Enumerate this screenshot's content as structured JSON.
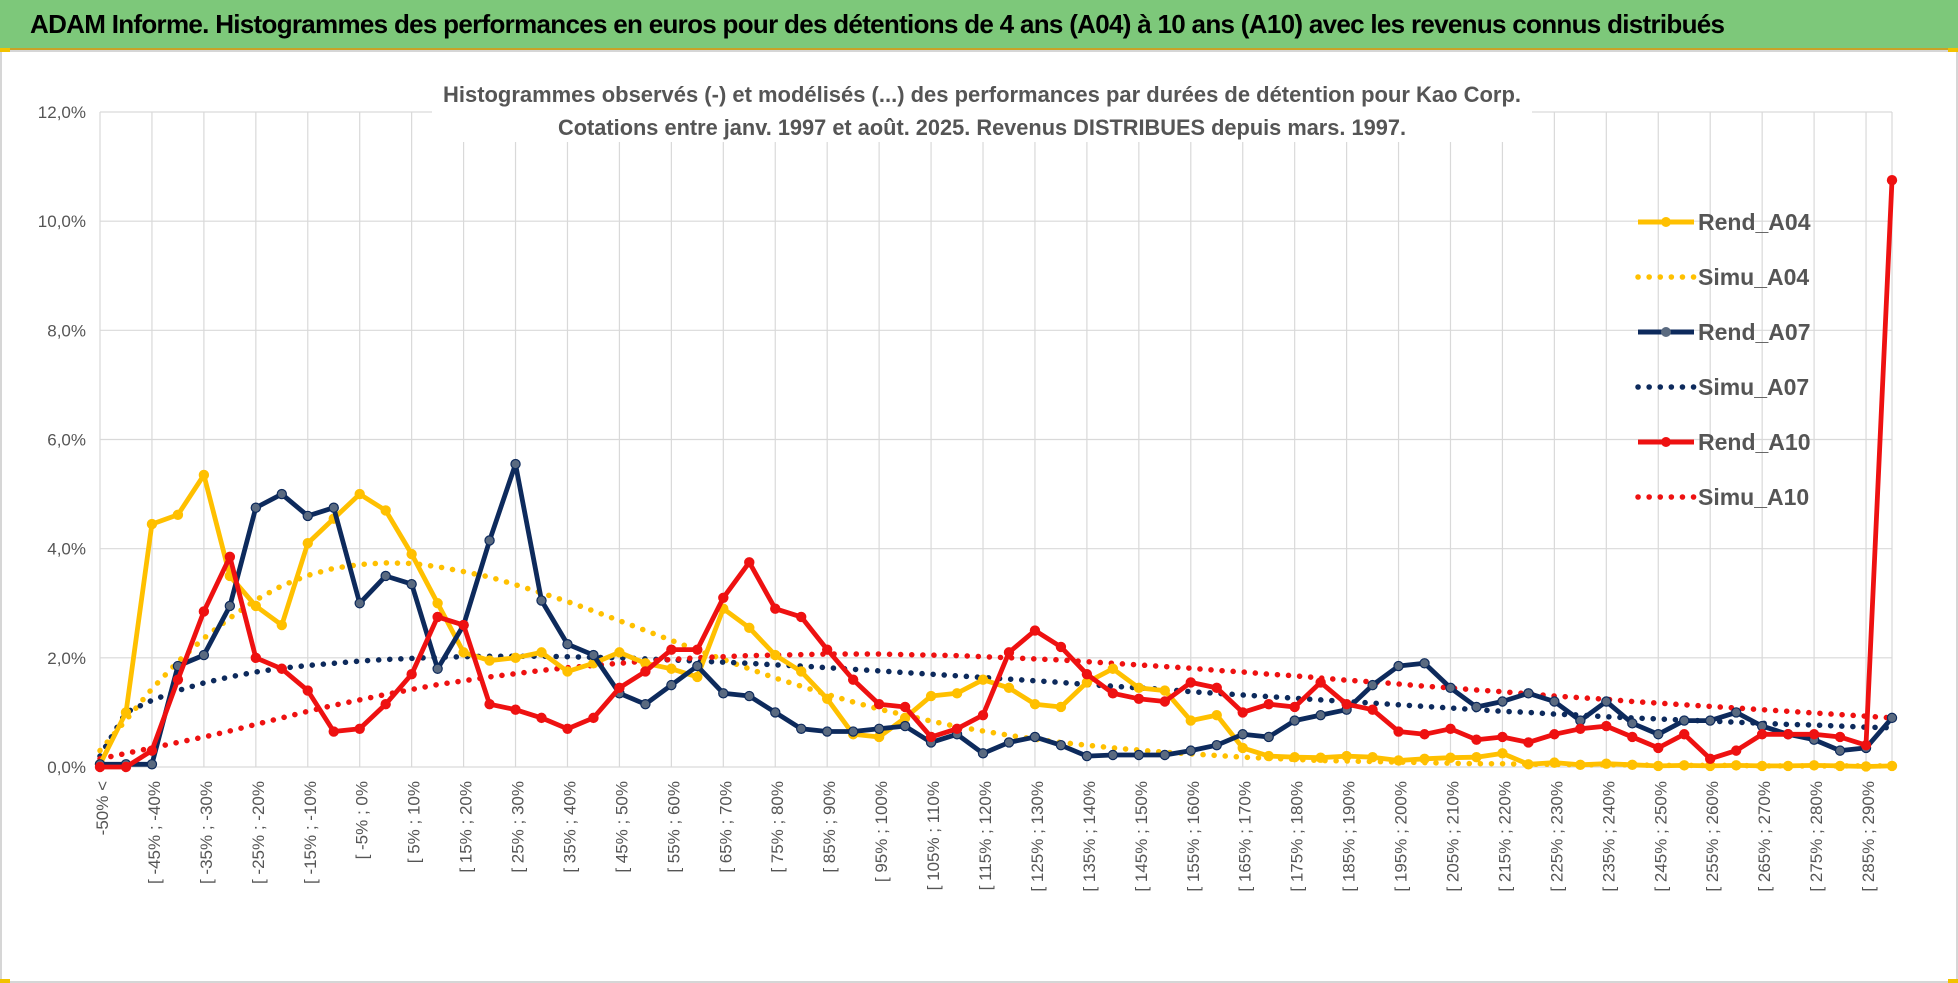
{
  "banner": {
    "title": "ADAM Informe. Histogrammes des performances en euros pour des détentions de 4 ans (A04) à 10 ans (A10) avec les revenus connus distribués",
    "bg_color": "#7dc87a"
  },
  "chart_data": {
    "type": "line",
    "title": "Histogrammes observés (-) et modélisés (...) des performances par durées de détention pour Kao Corp.",
    "subtitle": "Cotations entre janv. 1997 et août. 2025. Revenus DISTRIBUES depuis mars. 1997.",
    "xlabel": "",
    "ylabel": "",
    "ylim": [
      0,
      12
    ],
    "y_ticks": [
      "0,0%",
      "2,0%",
      "4,0%",
      "6,0%",
      "8,0%",
      "10,0%",
      "12,0%"
    ],
    "grid": true,
    "legend_position": "right",
    "x_tick_labels": [
      "-50% <",
      "[ -45% ; -40%",
      "[ -35% ; -30%",
      "[ -25% ; -20%",
      "[ -15% ; -10%",
      "[ -5% ; 0%",
      "[ 5% ; 10%",
      "[ 15% ; 20%",
      "[ 25% ; 30%",
      "[ 35% ; 40%",
      "[ 45% ; 50%",
      "[ 55% ; 60%",
      "[ 65% ; 70%",
      "[ 75% ; 80%",
      "[ 85% ; 90%",
      "[ 95% ; 100%",
      "[ 105% ; 110%",
      "[ 115% ; 120%",
      "[ 125% ; 130%",
      "[ 135% ; 140%",
      "[ 145% ; 150%",
      "[ 155% ; 160%",
      "[ 165% ; 170%",
      "[ 175% ; 180%",
      "[ 185% ; 190%",
      "[ 195% ; 200%",
      "[ 205% ; 210%",
      "[ 215% ; 220%",
      "[ 225% ; 230%",
      "[ 235% ; 240%",
      "[ 245% ; 250%",
      "[ 255% ; 260%",
      "[ 265% ; 270%",
      "[ 275% ; 280%",
      "[ 285% ; 290%"
    ],
    "categories_count": 70,
    "series": [
      {
        "name": "Rend_A04",
        "color": "#ffc000",
        "style": "solid",
        "values": [
          0.05,
          1.0,
          4.45,
          4.62,
          5.35,
          3.5,
          2.95,
          2.6,
          4.1,
          4.55,
          5.0,
          4.7,
          3.9,
          3.0,
          2.1,
          1.95,
          2.0,
          2.1,
          1.75,
          1.9,
          2.1,
          1.9,
          1.8,
          1.65,
          2.9,
          2.55,
          2.05,
          1.75,
          1.25,
          0.6,
          0.55,
          0.9,
          1.3,
          1.35,
          1.6,
          1.45,
          1.15,
          1.1,
          1.55,
          1.8,
          1.45,
          1.4,
          0.85,
          0.95,
          0.35,
          0.2,
          0.18,
          0.17,
          0.2,
          0.18,
          0.12,
          0.15,
          0.17,
          0.18,
          0.25,
          0.05,
          0.08,
          0.04,
          0.06,
          0.04,
          0.02,
          0.03,
          0.02,
          0.03,
          0.02,
          0.02,
          0.03,
          0.02,
          0.01,
          0.02
        ]
      },
      {
        "name": "Simu_A04",
        "color": "#ffc000",
        "style": "dotted",
        "values": [
          0.3,
          0.86,
          1.43,
          1.93,
          2.36,
          2.73,
          3.06,
          3.32,
          3.51,
          3.64,
          3.71,
          3.74,
          3.73,
          3.67,
          3.58,
          3.48,
          3.34,
          3.19,
          3.03,
          2.86,
          2.68,
          2.5,
          2.32,
          2.14,
          1.97,
          1.8,
          1.63,
          1.48,
          1.33,
          1.19,
          1.06,
          0.95,
          0.84,
          0.74,
          0.66,
          0.58,
          0.51,
          0.45,
          0.4,
          0.35,
          0.31,
          0.27,
          0.24,
          0.21,
          0.18,
          0.16,
          0.14,
          0.12,
          0.11,
          0.1,
          0.09,
          0.08,
          0.07,
          0.06,
          0.06,
          0.05,
          0.05,
          0.04,
          0.04,
          0.04,
          0.03,
          0.03,
          0.03,
          0.03,
          0.02,
          0.02,
          0.02,
          0.02,
          0.02,
          0.02
        ]
      },
      {
        "name": "Rend_A07",
        "color": "#0d2a5c",
        "style": "solid",
        "values": [
          0.05,
          0.05,
          0.05,
          1.85,
          2.05,
          2.95,
          4.75,
          5.0,
          4.6,
          4.75,
          3.0,
          3.5,
          3.35,
          1.8,
          2.6,
          4.15,
          5.55,
          3.05,
          2.25,
          2.05,
          1.35,
          1.15,
          1.5,
          1.85,
          1.35,
          1.3,
          1.0,
          0.7,
          0.65,
          0.65,
          0.7,
          0.75,
          0.45,
          0.6,
          0.25,
          0.45,
          0.55,
          0.4,
          0.2,
          0.22,
          0.22,
          0.22,
          0.3,
          0.4,
          0.6,
          0.55,
          0.85,
          0.95,
          1.05,
          1.5,
          1.85,
          1.9,
          1.45,
          1.1,
          1.2,
          1.35,
          1.2,
          0.85,
          1.2,
          0.8,
          0.6,
          0.85,
          0.85,
          1.0,
          0.75,
          0.6,
          0.5,
          0.3,
          0.35,
          0.9
        ]
      },
      {
        "name": "Simu_A07",
        "color": "#0d2a5c",
        "style": "dotted",
        "values": [
          0.2,
          1.0,
          1.22,
          1.4,
          1.54,
          1.65,
          1.74,
          1.81,
          1.86,
          1.9,
          1.94,
          1.97,
          1.99,
          2.01,
          2.02,
          2.03,
          2.03,
          2.03,
          2.02,
          2.01,
          2.0,
          1.98,
          1.96,
          1.94,
          1.92,
          1.9,
          1.87,
          1.85,
          1.82,
          1.79,
          1.76,
          1.73,
          1.7,
          1.67,
          1.64,
          1.61,
          1.58,
          1.55,
          1.51,
          1.48,
          1.45,
          1.42,
          1.38,
          1.35,
          1.32,
          1.29,
          1.26,
          1.23,
          1.2,
          1.17,
          1.14,
          1.11,
          1.08,
          1.05,
          1.02,
          1.0,
          0.97,
          0.95,
          0.92,
          0.9,
          0.88,
          0.86,
          0.84,
          0.82,
          0.8,
          0.78,
          0.77,
          0.75,
          0.73,
          0.72
        ]
      },
      {
        "name": "Rend_A10",
        "color": "#ee1111",
        "style": "solid",
        "values": [
          0.0,
          0.0,
          0.3,
          1.6,
          2.85,
          3.85,
          2.0,
          1.8,
          1.4,
          0.65,
          0.7,
          1.15,
          1.7,
          2.75,
          2.6,
          1.15,
          1.05,
          0.9,
          0.7,
          0.9,
          1.45,
          1.75,
          2.15,
          2.15,
          3.1,
          3.75,
          2.9,
          2.75,
          2.15,
          1.6,
          1.15,
          1.1,
          0.55,
          0.7,
          0.95,
          2.1,
          2.5,
          2.2,
          1.7,
          1.35,
          1.25,
          1.2,
          1.55,
          1.45,
          1.0,
          1.15,
          1.1,
          1.55,
          1.15,
          1.05,
          0.65,
          0.6,
          0.7,
          0.5,
          0.55,
          0.45,
          0.6,
          0.7,
          0.75,
          0.55,
          0.35,
          0.6,
          0.15,
          0.3,
          0.6,
          0.6,
          0.6,
          0.55,
          0.4,
          10.75
        ]
      },
      {
        "name": "Simu_A10",
        "color": "#ee1111",
        "style": "dotted",
        "values": [
          0.15,
          0.25,
          0.35,
          0.45,
          0.55,
          0.66,
          0.78,
          0.9,
          1.02,
          1.13,
          1.23,
          1.33,
          1.42,
          1.51,
          1.58,
          1.65,
          1.71,
          1.77,
          1.82,
          1.86,
          1.9,
          1.94,
          1.97,
          2.0,
          2.02,
          2.04,
          2.05,
          2.06,
          2.07,
          2.07,
          2.07,
          2.06,
          2.05,
          2.04,
          2.02,
          2.0,
          1.98,
          1.96,
          1.93,
          1.9,
          1.87,
          1.84,
          1.81,
          1.77,
          1.74,
          1.7,
          1.67,
          1.63,
          1.59,
          1.56,
          1.52,
          1.48,
          1.45,
          1.41,
          1.38,
          1.34,
          1.3,
          1.27,
          1.24,
          1.2,
          1.17,
          1.14,
          1.11,
          1.08,
          1.05,
          1.02,
          0.99,
          0.96,
          0.93,
          0.9
        ]
      }
    ]
  }
}
